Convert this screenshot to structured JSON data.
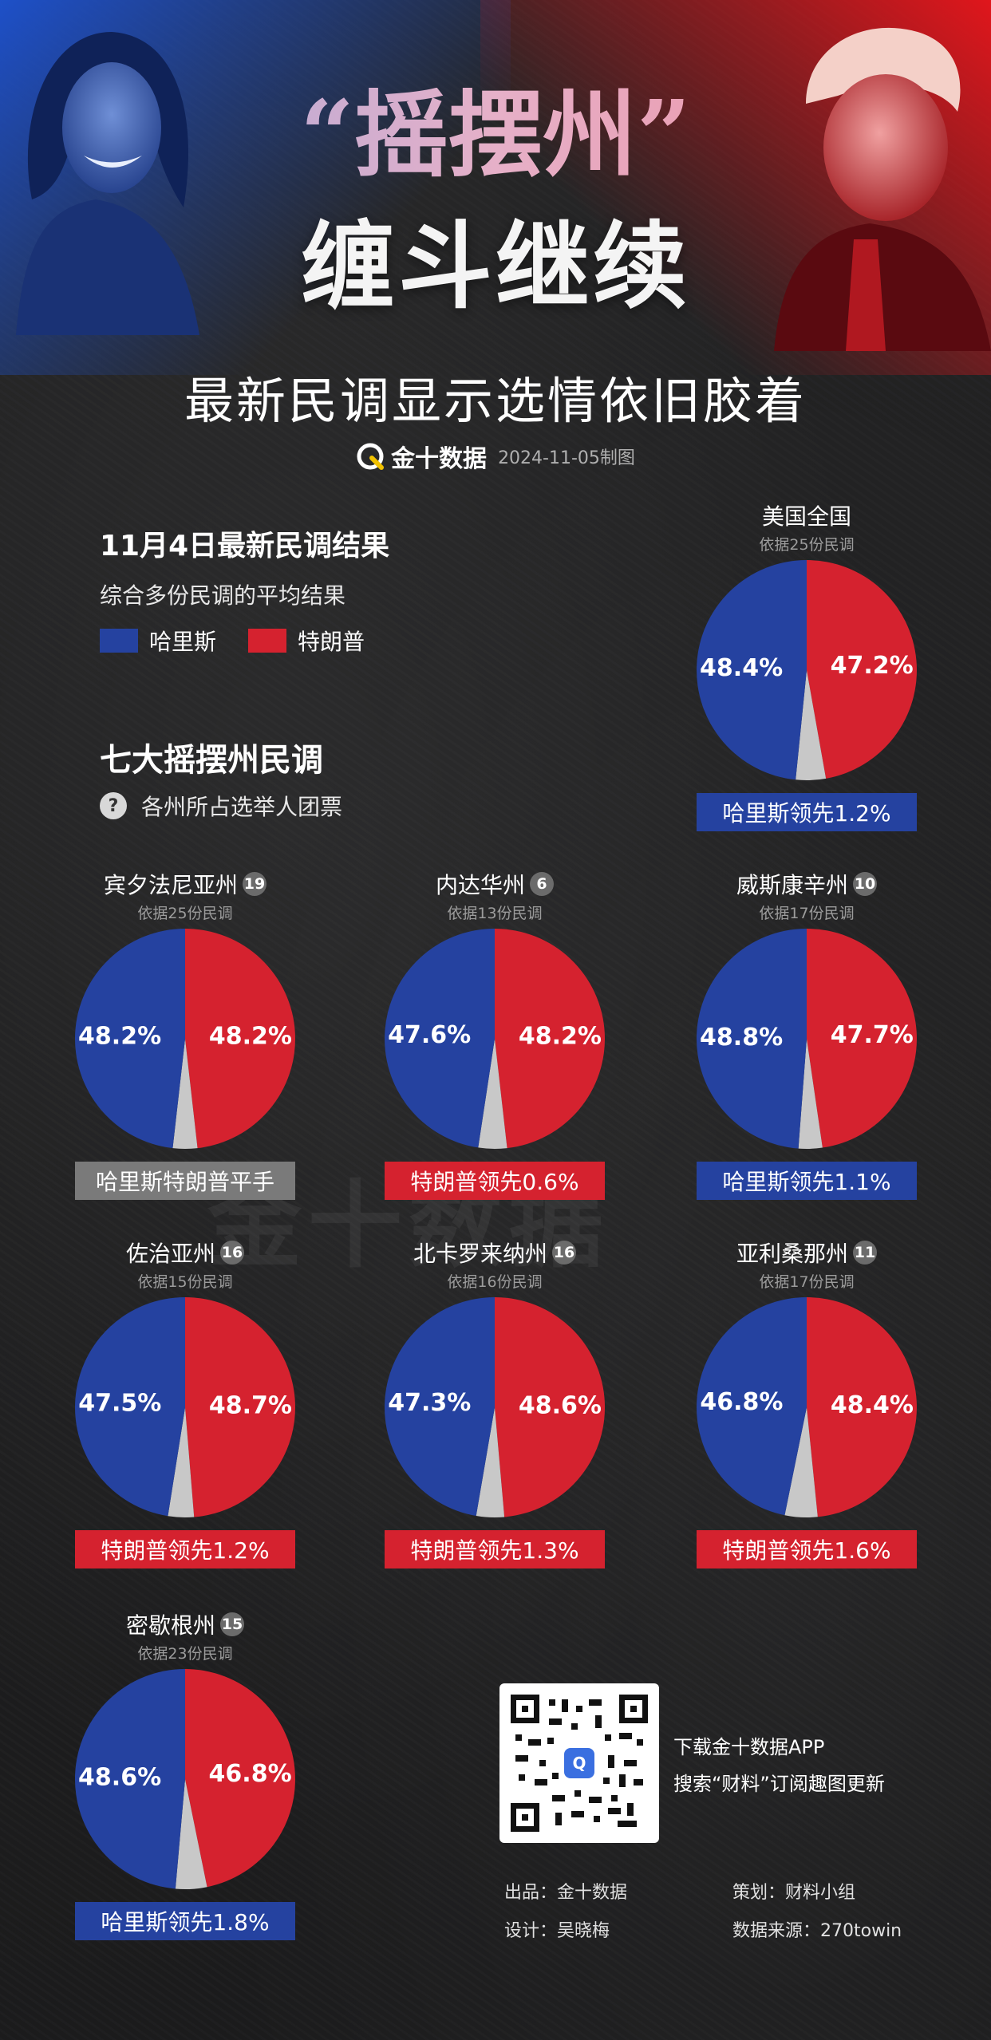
{
  "header": {
    "title_top": "“摇摆州”",
    "title_main": "缠斗继续",
    "subtitle": "最新民调显示选情依旧胶着",
    "brand": "金十数据",
    "date": "2024-11-05制图"
  },
  "intro": {
    "title": "11月4日最新民调结果",
    "subtitle": "综合多份民调的平均结果"
  },
  "legend": {
    "harris_label": "哈里斯",
    "trump_label": "特朗普",
    "harris_color": "#2542a0",
    "trump_color": "#d5222f",
    "undecided_color": "#c8c8c8"
  },
  "swing": {
    "title": "七大摇摆州民调",
    "note_icon": "?",
    "note": "各州所占选举人团票"
  },
  "chart_data": [
    {
      "type": "pie",
      "title": "美国全国",
      "subtitle": "依据25份民调",
      "electoral_votes": null,
      "series": [
        {
          "name": "哈里斯",
          "value": 48.4,
          "label": "48.4%"
        },
        {
          "name": "特朗普",
          "value": 47.2,
          "label": "47.2%"
        }
      ],
      "lead": "哈里斯领先1.2%",
      "lead_color": "#2542a0"
    },
    {
      "type": "pie",
      "title": "宾夕法尼亚州",
      "subtitle": "依据25份民调",
      "electoral_votes": "19",
      "series": [
        {
          "name": "哈里斯",
          "value": 48.2,
          "label": "48.2%"
        },
        {
          "name": "特朗普",
          "value": 48.2,
          "label": "48.2%"
        }
      ],
      "lead": "哈里斯特朗普平手",
      "lead_color": "#7a7a7a"
    },
    {
      "type": "pie",
      "title": "内达华州",
      "subtitle": "依据13份民调",
      "electoral_votes": "6",
      "series": [
        {
          "name": "哈里斯",
          "value": 47.6,
          "label": "47.6%"
        },
        {
          "name": "特朗普",
          "value": 48.2,
          "label": "48.2%"
        }
      ],
      "lead": "特朗普领先0.6%",
      "lead_color": "#d5222f"
    },
    {
      "type": "pie",
      "title": "威斯康辛州",
      "subtitle": "依据17份民调",
      "electoral_votes": "10",
      "series": [
        {
          "name": "哈里斯",
          "value": 48.8,
          "label": "48.8%"
        },
        {
          "name": "特朗普",
          "value": 47.7,
          "label": "47.7%"
        }
      ],
      "lead": "哈里斯领先1.1%",
      "lead_color": "#2542a0"
    },
    {
      "type": "pie",
      "title": "佐治亚州",
      "subtitle": "依据15份民调",
      "electoral_votes": "16",
      "series": [
        {
          "name": "哈里斯",
          "value": 47.5,
          "label": "47.5%"
        },
        {
          "name": "特朗普",
          "value": 48.7,
          "label": "48.7%"
        }
      ],
      "lead": "特朗普领先1.2%",
      "lead_color": "#d5222f"
    },
    {
      "type": "pie",
      "title": "北卡罗来纳州",
      "subtitle": "依据16份民调",
      "electoral_votes": "16",
      "series": [
        {
          "name": "哈里斯",
          "value": 47.3,
          "label": "47.3%"
        },
        {
          "name": "特朗普",
          "value": 48.6,
          "label": "48.6%"
        }
      ],
      "lead": "特朗普领先1.3%",
      "lead_color": "#d5222f"
    },
    {
      "type": "pie",
      "title": "亚利桑那州",
      "subtitle": "依据17份民调",
      "electoral_votes": "11",
      "series": [
        {
          "name": "哈里斯",
          "value": 46.8,
          "label": "46.8%"
        },
        {
          "name": "特朗普",
          "value": 48.4,
          "label": "48.4%"
        }
      ],
      "lead": "特朗普领先1.6%",
      "lead_color": "#d5222f"
    },
    {
      "type": "pie",
      "title": "密歇根州",
      "subtitle": "依据23份民调",
      "electoral_votes": "15",
      "series": [
        {
          "name": "哈里斯",
          "value": 48.6,
          "label": "48.6%"
        },
        {
          "name": "特朗普",
          "value": 46.8,
          "label": "46.8%"
        }
      ],
      "lead": "哈里斯领先1.8%",
      "lead_color": "#2542a0"
    }
  ],
  "footer": {
    "qr_icon": "qr-code-icon",
    "app_line1": "下载金十数据APP",
    "app_line2": "搜索“财料”订阅趣图更新",
    "producer": "出品：金十数据",
    "planner": "策划：财料小组",
    "designer": "设计：吴晓梅",
    "source": "数据来源：270towin"
  }
}
